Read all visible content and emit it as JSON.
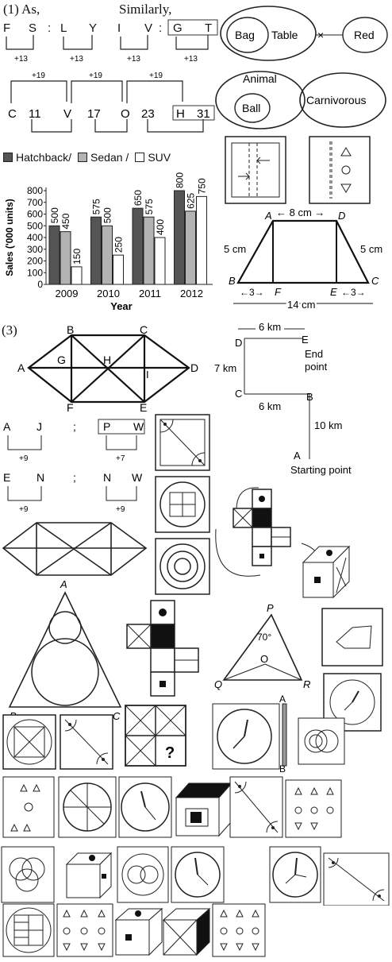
{
  "p1": {
    "heading": "(1) As,",
    "similarly": "Similarly,",
    "letters": [
      "F",
      "S",
      ":",
      "L",
      "Y",
      "I",
      "V",
      ":",
      "G",
      "T"
    ],
    "plus13": "+13",
    "row2": [
      "C",
      "11",
      "V",
      "17",
      "O",
      "23",
      "H",
      "31"
    ],
    "plus19": "+19"
  },
  "venn1": {
    "a": "Bag",
    "b": "Table",
    "c": "Red",
    "cross": "×"
  },
  "venn2": {
    "a": "Animal",
    "b": "Ball",
    "c": "Carnivorous"
  },
  "chart_data": {
    "type": "bar",
    "categories": [
      "2009",
      "2010",
      "2011",
      "2012"
    ],
    "series": [
      {
        "name": "Hatchback/",
        "values": [
          500,
          575,
          650,
          800
        ],
        "color": "#555555"
      },
      {
        "name": "Sedan /",
        "values": [
          450,
          500,
          575,
          625
        ],
        "color": "#b3b3b3"
      },
      {
        "name": "SUV",
        "values": [
          150,
          250,
          400,
          750
        ],
        "color": "#ffffff"
      }
    ],
    "xlabel": "Year",
    "ylabel": "Sales ('000 units)",
    "ylim": [
      0,
      800
    ],
    "yticks": [
      "0",
      "100",
      "200",
      "300",
      "400",
      "500",
      "600",
      "700",
      "800"
    ]
  },
  "trap": {
    "top": "← 8 cm →",
    "A": "A",
    "D": "D",
    "B": "B",
    "C": "C",
    "E": "E",
    "F": "F",
    "left": "5 cm",
    "right": "5 cm",
    "bl": "←3→",
    "br": "←3→",
    "bottom": "14 cm"
  },
  "p3": {
    "heading": "(3)",
    "B": "B",
    "C": "C",
    "A": "A",
    "D": "D",
    "G": "G",
    "H": "H",
    "I": "I",
    "F": "F",
    "E": "E"
  },
  "route": {
    "top": "6 km",
    "D": "D",
    "E": "E",
    "end": "End",
    "endpt": "point",
    "left": "7 km",
    "C": "C",
    "B": "B",
    "mid": "6 km",
    "down": "10 km",
    "A": "A",
    "start": "Starting point"
  },
  "pairs": {
    "a1": "A",
    "a2": "J",
    "sep": ";",
    "b1": "P",
    "b2": "W",
    "p9": "+9",
    "p7": "+7",
    "c1": "E",
    "c2": "N",
    "d1": "N",
    "d2": "W"
  },
  "tri": {
    "A": "A",
    "B": "B",
    "C": "C"
  },
  "pqr": {
    "P": "P",
    "angle": "70°",
    "O": "O",
    "Q": "Q",
    "R": "R"
  },
  "clockAB": {
    "A": "A",
    "B": "B"
  },
  "qmark": "?"
}
